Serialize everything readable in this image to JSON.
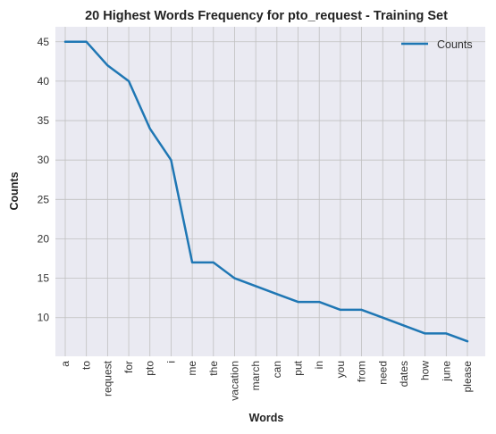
{
  "chart_data": {
    "type": "line",
    "title": "20 Highest Words Frequency for pto_request - Training Set",
    "xlabel": "Words",
    "ylabel": "Counts",
    "categories": [
      "a",
      "to",
      "request",
      "for",
      "pto",
      "i",
      "me",
      "the",
      "vacation",
      "march",
      "can",
      "put",
      "in",
      "you",
      "from",
      "need",
      "dates",
      "how",
      "june",
      "please"
    ],
    "series": [
      {
        "name": "Counts",
        "values": [
          45,
          45,
          42,
          40,
          34,
          30,
          17,
          17,
          15,
          14,
          13,
          12,
          12,
          11,
          11,
          10,
          9,
          8,
          8,
          7
        ],
        "color": "#1f77b4"
      }
    ],
    "yticks": [
      10,
      15,
      20,
      25,
      30,
      35,
      40,
      45
    ],
    "ylim": [
      5.1,
      46.9
    ],
    "grid": true,
    "legend_position": "top-right",
    "background_color": "#eaeaf2",
    "grid_color": "#c0c0c0"
  }
}
